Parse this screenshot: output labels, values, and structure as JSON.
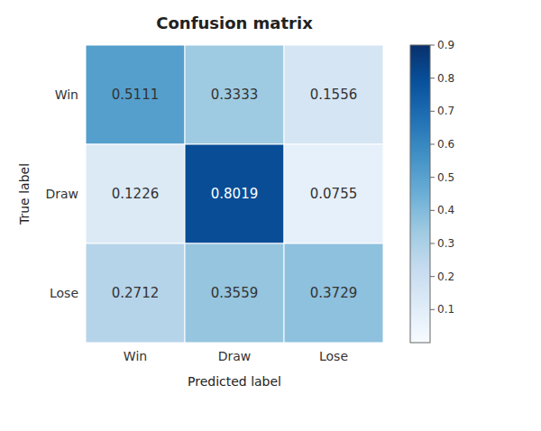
{
  "chart_data": {
    "type": "heatmap",
    "title": "Confusion matrix",
    "x_label": "Predicted label",
    "y_label": "True label",
    "categories": [
      "Win",
      "Draw",
      "Lose"
    ],
    "values": [
      [
        0.5111,
        0.3333,
        0.1556
      ],
      [
        0.1226,
        0.8019,
        0.0755
      ],
      [
        0.2712,
        0.3559,
        0.3729
      ]
    ],
    "color": "Blues",
    "data_labels": true,
    "colorbar": {
      "range": [
        0.0,
        0.9
      ],
      "ticks": [
        0.1,
        0.2,
        0.3,
        0.4,
        0.5,
        0.6,
        0.7,
        0.8,
        0.9
      ]
    }
  }
}
